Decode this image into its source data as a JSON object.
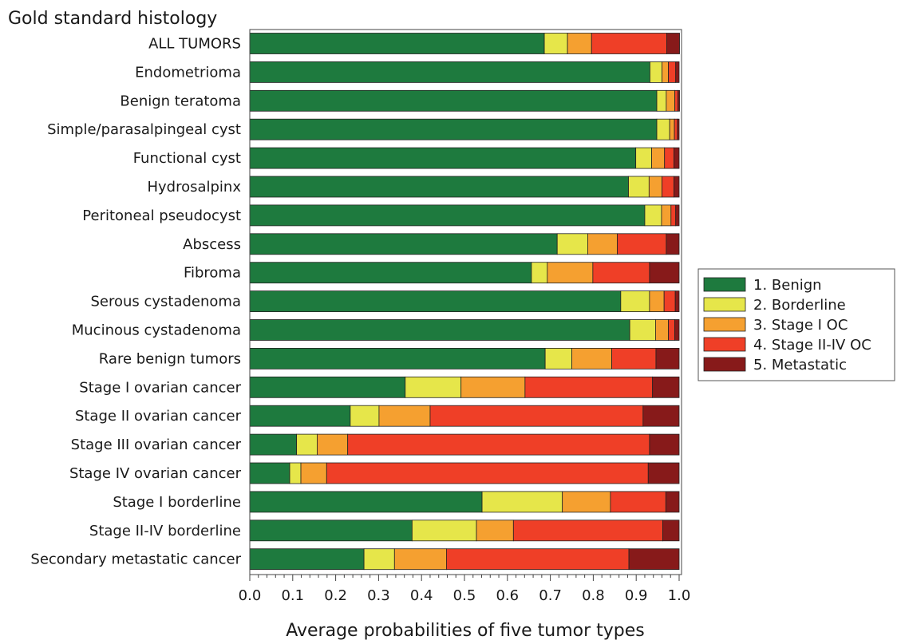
{
  "chart_data": {
    "type": "bar",
    "orientation": "horizontal",
    "stacked": true,
    "title": "Gold standard histology",
    "xlabel": "Average probabilities of five tumor types",
    "ylabel": "",
    "xlim": [
      0,
      1
    ],
    "x_ticks": [
      "0.0",
      "0.1",
      "0.2",
      "0.3",
      "0.4",
      "0.5",
      "0.6",
      "0.7",
      "0.8",
      "0.9",
      "1.0"
    ],
    "grid": false,
    "legend_position": "right",
    "categories": [
      "ALL TUMORS",
      "Endometrioma",
      "Benign teratoma",
      "Simple/parasalpingeal cyst",
      "Functional cyst",
      "Hydrosalpinx",
      "Peritoneal pseudocyst",
      "Abscess",
      "Fibroma",
      "Serous cystadenoma",
      "Mucinous cystadenoma",
      "Rare benign tumors",
      "Stage I ovarian cancer",
      "Stage II ovarian cancer",
      "Stage III ovarian cancer",
      "Stage IV ovarian cancer",
      "Stage I borderline",
      "Stage II-IV borderline",
      "Secondary metastatic cancer"
    ],
    "series": [
      {
        "name": "1. Benign",
        "color": "#1e7a3e",
        "values": [
          0.686,
          0.932,
          0.948,
          0.948,
          0.899,
          0.882,
          0.92,
          0.716,
          0.656,
          0.864,
          0.885,
          0.688,
          0.362,
          0.234,
          0.109,
          0.093,
          0.541,
          0.378,
          0.266
        ]
      },
      {
        "name": "2. Borderline",
        "color": "#e6e64a",
        "values": [
          0.054,
          0.028,
          0.022,
          0.03,
          0.037,
          0.048,
          0.039,
          0.071,
          0.037,
          0.067,
          0.06,
          0.062,
          0.13,
          0.067,
          0.048,
          0.026,
          0.187,
          0.15,
          0.071
        ]
      },
      {
        "name": "3. Stage I OC",
        "color": "#f5a030",
        "values": [
          0.056,
          0.015,
          0.02,
          0.011,
          0.03,
          0.03,
          0.022,
          0.069,
          0.106,
          0.034,
          0.03,
          0.093,
          0.149,
          0.119,
          0.071,
          0.06,
          0.112,
          0.086,
          0.121
        ]
      },
      {
        "name": "4. Stage II-IV OC",
        "color": "#ef3f27",
        "values": [
          0.175,
          0.017,
          0.007,
          0.007,
          0.022,
          0.028,
          0.011,
          0.114,
          0.132,
          0.026,
          0.015,
          0.103,
          0.297,
          0.496,
          0.703,
          0.749,
          0.129,
          0.348,
          0.425
        ]
      },
      {
        "name": "5. Metastatic",
        "color": "#871a1a",
        "values": [
          0.03,
          0.008,
          0.004,
          0.004,
          0.012,
          0.012,
          0.008,
          0.03,
          0.069,
          0.009,
          0.01,
          0.054,
          0.062,
          0.084,
          0.069,
          0.072,
          0.031,
          0.038,
          0.117
        ]
      }
    ]
  }
}
